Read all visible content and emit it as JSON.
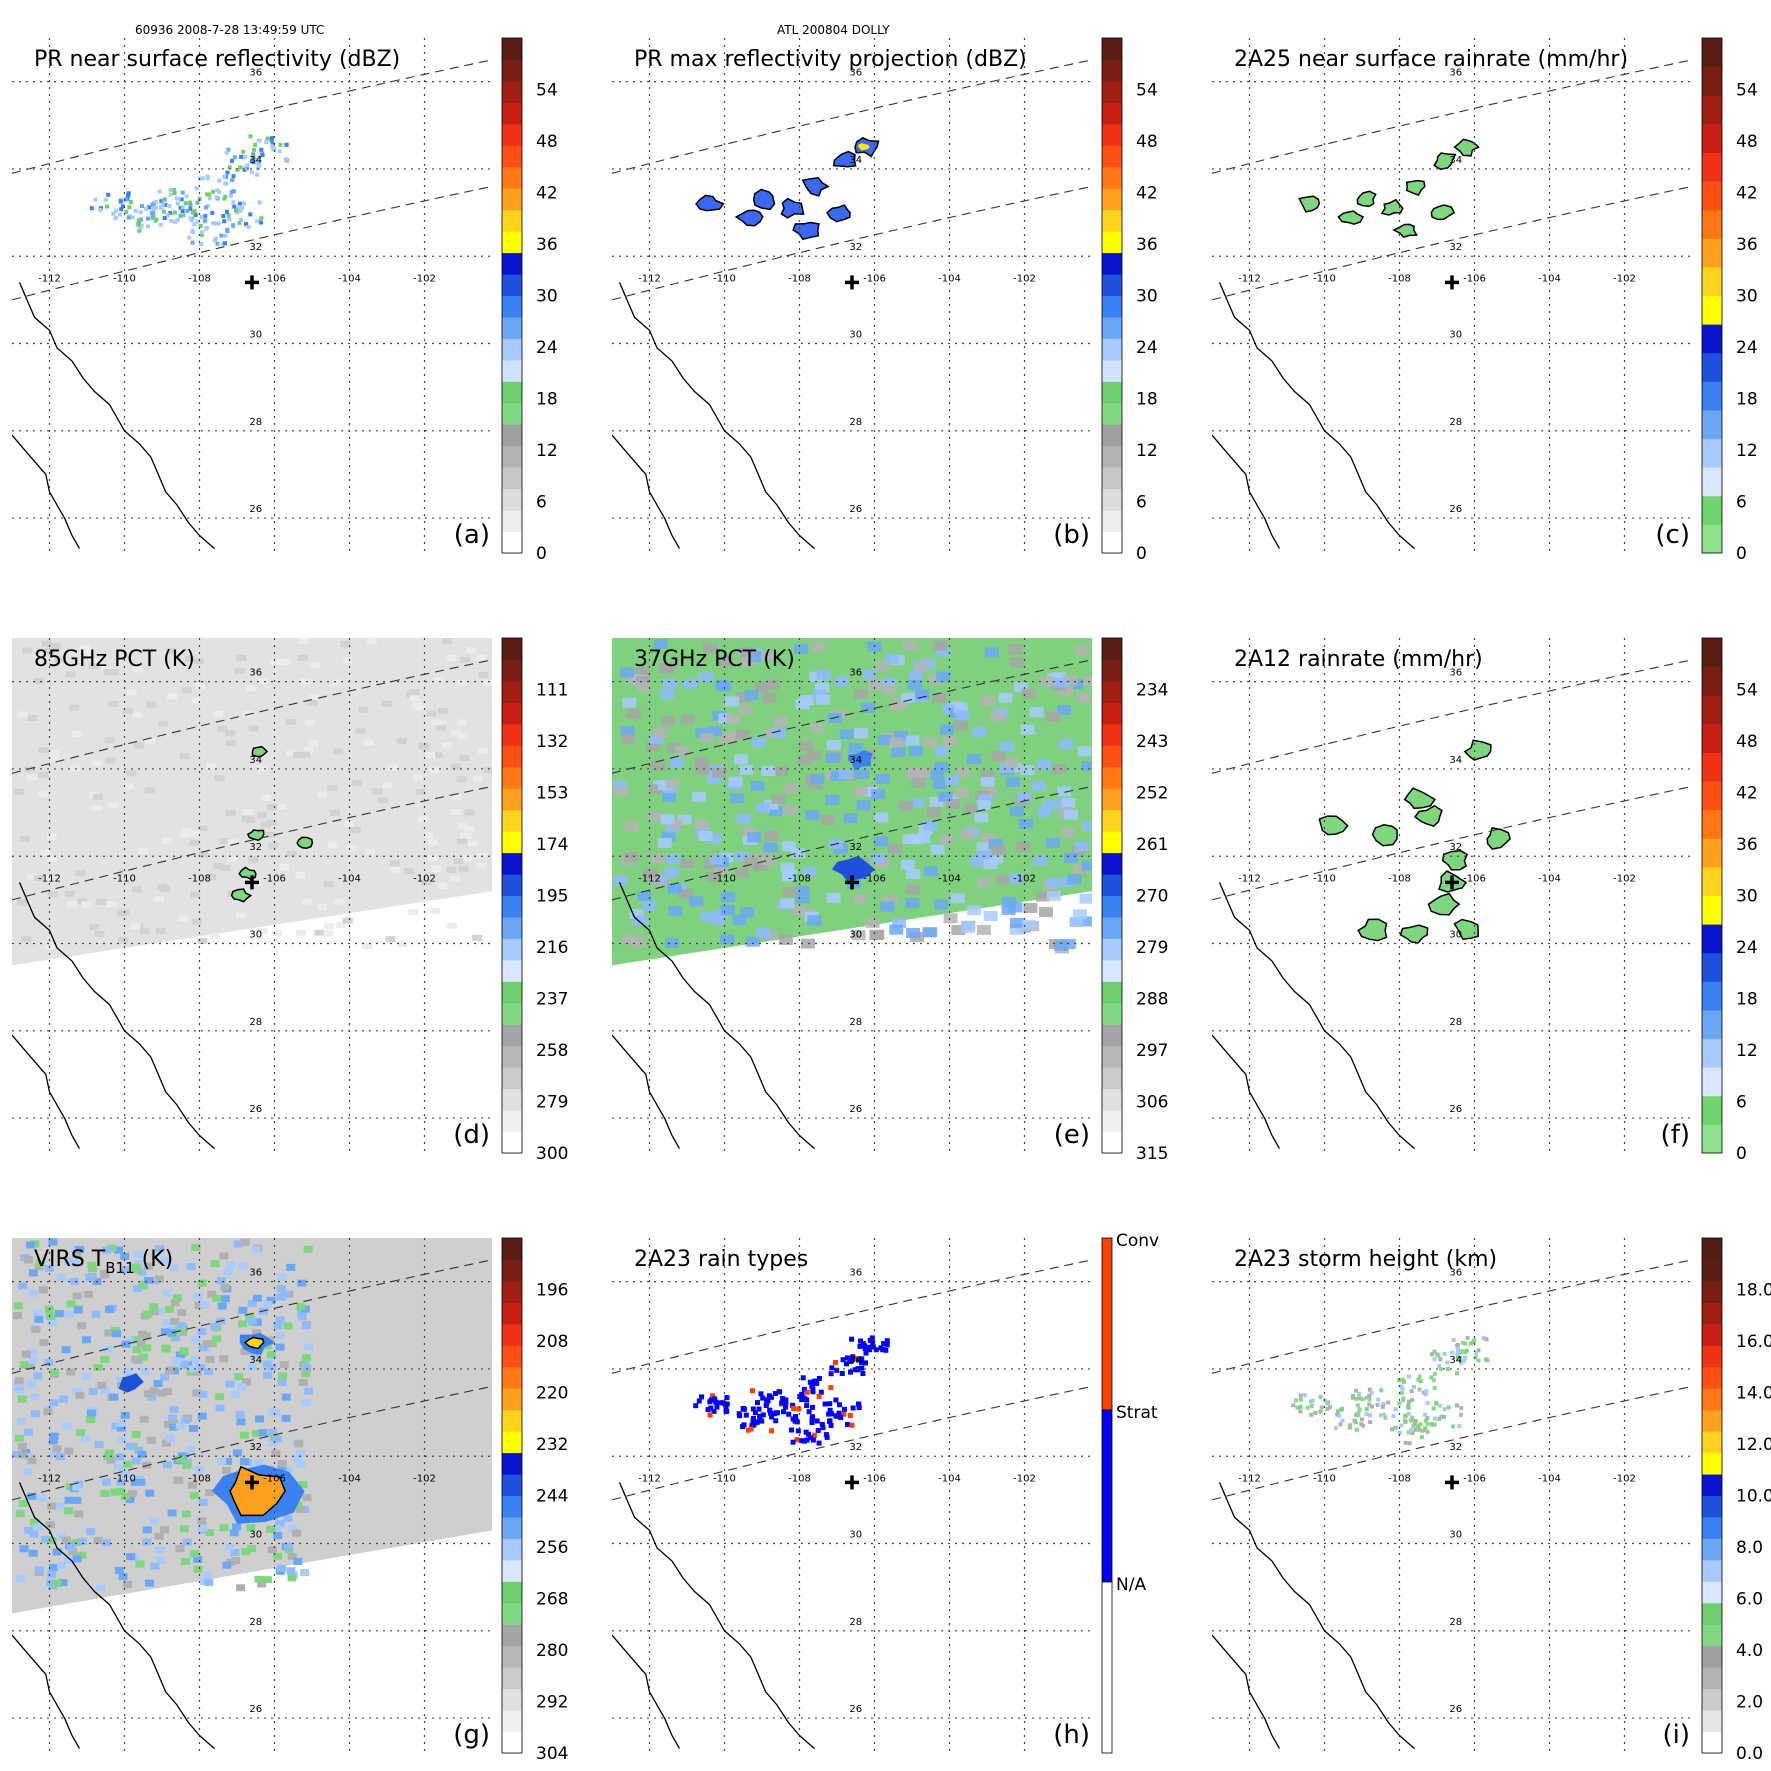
{
  "header": {
    "left": "60936 2008-7-28 13:49:59 UTC",
    "center": "ATL 200804 DOLLY"
  },
  "map_axes": {
    "lon_ticks": [
      "-112",
      "-110",
      "-108",
      "-106",
      "-104",
      "-102"
    ],
    "lat_ticks": [
      "36",
      "34",
      "32",
      "30",
      "28",
      "26"
    ],
    "center_marker_lon": -106.6,
    "center_marker_lat": 31.4
  },
  "panels": [
    {
      "id": "a",
      "title": "PR near surface reflectivity (dBZ)",
      "label": "(a)",
      "colorbar": {
        "ticks": [
          "54",
          "48",
          "42",
          "36",
          "30",
          "24",
          "18",
          "12",
          "6",
          "0"
        ],
        "scale": "dbz"
      },
      "field": {
        "type": "pr_speckle",
        "coverage": "swath-sparse"
      }
    },
    {
      "id": "b",
      "title": "PR max reflectivity projection (dBZ)",
      "label": "(b)",
      "colorbar": {
        "ticks": [
          "54",
          "48",
          "42",
          "36",
          "30",
          "24",
          "18",
          "12",
          "6",
          "0"
        ],
        "scale": "dbz"
      },
      "field": {
        "type": "pr_blobs",
        "coverage": "swath-sparse"
      }
    },
    {
      "id": "c",
      "title": "2A25 near surface rainrate (mm/hr)",
      "label": "(c)",
      "colorbar": {
        "ticks": [
          "54",
          "48",
          "42",
          "36",
          "30",
          "24",
          "18",
          "12",
          "6",
          "0"
        ],
        "scale": "rain"
      },
      "field": {
        "type": "rain_blobs",
        "coverage": "swath-sparse"
      }
    },
    {
      "id": "d",
      "title": "85GHz PCT (K)",
      "label": "(d)",
      "colorbar": {
        "ticks": [
          "111",
          "132",
          "153",
          "174",
          "195",
          "216",
          "237",
          "258",
          "279",
          "300"
        ],
        "scale": "pct"
      },
      "field": {
        "type": "pct85",
        "coverage": "tmi-swath"
      }
    },
    {
      "id": "e",
      "title": "37GHz PCT (K)",
      "label": "(e)",
      "colorbar": {
        "ticks": [
          "234",
          "243",
          "252",
          "261",
          "270",
          "279",
          "288",
          "297",
          "306",
          "315"
        ],
        "scale": "pct"
      },
      "field": {
        "type": "pct37",
        "coverage": "tmi-swath"
      }
    },
    {
      "id": "f",
      "title": "2A12 rainrate (mm/hr)",
      "label": "(f)",
      "colorbar": {
        "ticks": [
          "54",
          "48",
          "42",
          "36",
          "30",
          "24",
          "18",
          "12",
          "6",
          "0"
        ],
        "scale": "rain"
      },
      "field": {
        "type": "rain2a12",
        "coverage": "tmi-swath"
      }
    },
    {
      "id": "g",
      "title_main": "VIRS T",
      "title_sub": "B11",
      "title_end": " (K)",
      "label": "(g)",
      "colorbar": {
        "ticks": [
          "196",
          "208",
          "220",
          "232",
          "244",
          "256",
          "268",
          "280",
          "292",
          "304"
        ],
        "scale": "pct"
      },
      "field": {
        "type": "virs",
        "coverage": "virs-swath"
      }
    },
    {
      "id": "h",
      "title": "2A23 rain types",
      "label": "(h)",
      "colorbar": {
        "ticks": [
          "Conv",
          "Strat",
          "N/A"
        ],
        "scale": "raintype"
      },
      "field": {
        "type": "raintype",
        "coverage": "swath-sparse"
      }
    },
    {
      "id": "i",
      "title": "2A23 storm height (km)",
      "label": "(i)",
      "colorbar": {
        "ticks": [
          "18.0",
          "16.0",
          "14.0",
          "12.0",
          "10.0",
          "8.0",
          "6.0",
          "4.0",
          "2.0",
          "0.0"
        ],
        "scale": "height"
      },
      "field": {
        "type": "height",
        "coverage": "swath-sparse"
      }
    }
  ],
  "colors": {
    "dbz": [
      "#ffffff",
      "#ededed",
      "#dcdcdc",
      "#c8c8c8",
      "#b4b4b4",
      "#a0a0a0",
      "#82d882",
      "#6fcf6f",
      "#cfe2ff",
      "#a7cbff",
      "#6aa8f5",
      "#3b82f0",
      "#1e50dc",
      "#0a14cc",
      "#ffff00",
      "#ffd21e",
      "#ffa01e",
      "#ff7814",
      "#ff5014",
      "#f03214",
      "#c81e14",
      "#a01e14",
      "#781e14",
      "#5a1e14"
    ],
    "rain": [
      "#8ee28e",
      "#6fd46f",
      "#d8e6ff",
      "#a7cbff",
      "#6aa8f5",
      "#3b82f0",
      "#1e50dc",
      "#0a14cc",
      "#ffff00",
      "#ffd21e",
      "#ffa01e",
      "#ff7814",
      "#ff5014",
      "#f03214",
      "#c81e14",
      "#a01e14",
      "#781e14",
      "#5a1e14"
    ],
    "pct": [
      "#ffffff",
      "#f0f0f0",
      "#e0e0e0",
      "#cccccc",
      "#b8b8b8",
      "#a4a4a4",
      "#82d882",
      "#6fcf6f",
      "#d8e6ff",
      "#a7cbff",
      "#6aa8f5",
      "#3b82f0",
      "#1e50dc",
      "#0a14cc",
      "#ffff00",
      "#ffd21e",
      "#ffa01e",
      "#ff7814",
      "#ff5014",
      "#f03214",
      "#c81e14",
      "#a01e14",
      "#781e14",
      "#5a1e14"
    ],
    "raintype": [
      "#ffffff",
      "#0000ff",
      "#ff4000"
    ],
    "height": [
      "#ffffff",
      "#e6e6e6",
      "#cccccc",
      "#b4b4b4",
      "#a0a0a0",
      "#82d882",
      "#6fcf6f",
      "#d8e6ff",
      "#a7cbff",
      "#6aa8f5",
      "#3b82f0",
      "#1e50dc",
      "#0a14cc",
      "#ffff00",
      "#ffd21e",
      "#ffa01e",
      "#ff7814",
      "#ff5014",
      "#f03214",
      "#c81e14",
      "#a01e14",
      "#781e14",
      "#5a1e14",
      "#501e14"
    ]
  }
}
